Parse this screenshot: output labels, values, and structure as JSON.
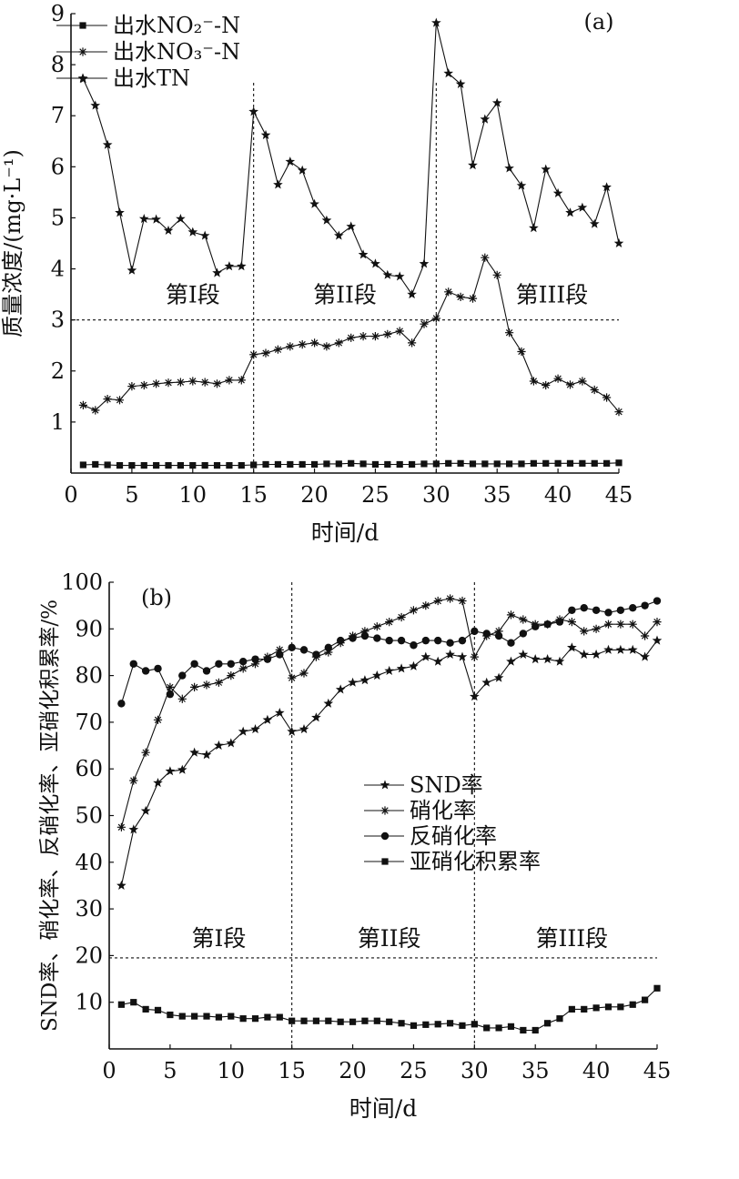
{
  "chart_data": [
    {
      "type": "line",
      "panel_label": "(a)",
      "xlabel": "时间/d",
      "ylabel": "质量浓度/(mg·L⁻¹)",
      "xlim": [
        0,
        45
      ],
      "ylim": [
        0,
        9
      ],
      "xticks": [
        "0",
        "5",
        "10",
        "15",
        "20",
        "25",
        "30",
        "35",
        "40",
        "45"
      ],
      "yticks": [
        "1",
        "2",
        "3",
        "4",
        "5",
        "6",
        "7",
        "8",
        "9"
      ],
      "legend_position": "top-left",
      "phases": [
        {
          "label": "第I段",
          "x": 10,
          "y": 3.2
        },
        {
          "label": "第II段",
          "x": 22.5,
          "y": 3.2
        },
        {
          "label": "第III段",
          "x": 39.5,
          "y": 3.2
        }
      ],
      "phase_threshold_y": 3,
      "phase_boundaries_x": [
        15,
        30
      ],
      "series": [
        {
          "name": "出水NO₂⁻-N",
          "marker": "square",
          "x": [
            1,
            2,
            3,
            4,
            5,
            6,
            7,
            8,
            9,
            10,
            11,
            12,
            13,
            14,
            15,
            16,
            17,
            18,
            19,
            20,
            21,
            22,
            23,
            24,
            25,
            26,
            27,
            28,
            29,
            30,
            31,
            32,
            33,
            34,
            35,
            36,
            37,
            38,
            39,
            40,
            41,
            42,
            43,
            44,
            45
          ],
          "y": [
            0.16,
            0.17,
            0.16,
            0.15,
            0.15,
            0.15,
            0.15,
            0.15,
            0.15,
            0.15,
            0.15,
            0.15,
            0.15,
            0.15,
            0.16,
            0.17,
            0.17,
            0.17,
            0.17,
            0.17,
            0.18,
            0.18,
            0.19,
            0.18,
            0.17,
            0.17,
            0.17,
            0.17,
            0.18,
            0.18,
            0.19,
            0.19,
            0.18,
            0.18,
            0.18,
            0.18,
            0.18,
            0.19,
            0.19,
            0.19,
            0.19,
            0.19,
            0.19,
            0.19,
            0.2
          ]
        },
        {
          "name": "出水NO₃⁻-N",
          "marker": "asterisk",
          "x": [
            1,
            2,
            3,
            4,
            5,
            6,
            7,
            8,
            9,
            10,
            11,
            12,
            13,
            14,
            15,
            16,
            17,
            18,
            19,
            20,
            21,
            22,
            23,
            24,
            25,
            26,
            27,
            28,
            29,
            30,
            31,
            32,
            33,
            34,
            35,
            36,
            37,
            38,
            39,
            40,
            41,
            42,
            43,
            44,
            45
          ],
          "y": [
            1.33,
            1.23,
            1.45,
            1.43,
            1.7,
            1.72,
            1.75,
            1.77,
            1.78,
            1.8,
            1.78,
            1.75,
            1.82,
            1.82,
            2.32,
            2.35,
            2.42,
            2.48,
            2.52,
            2.55,
            2.48,
            2.55,
            2.65,
            2.68,
            2.68,
            2.72,
            2.78,
            2.55,
            2.92,
            3.03,
            3.55,
            3.45,
            3.42,
            4.22,
            3.88,
            2.75,
            2.38,
            1.8,
            1.72,
            1.85,
            1.73,
            1.8,
            1.63,
            1.48,
            1.2
          ]
        },
        {
          "name": "出水TN",
          "marker": "star",
          "x": [
            1,
            2,
            3,
            4,
            5,
            6,
            7,
            8,
            9,
            10,
            11,
            12,
            13,
            14,
            15,
            16,
            17,
            18,
            19,
            20,
            21,
            22,
            23,
            24,
            25,
            26,
            27,
            28,
            29,
            30,
            31,
            32,
            33,
            34,
            35,
            36,
            37,
            38,
            39,
            40,
            41,
            42,
            43,
            44,
            45
          ],
          "y": [
            7.72,
            7.2,
            6.43,
            5.1,
            3.97,
            4.98,
            4.97,
            4.75,
            4.98,
            4.72,
            4.65,
            3.92,
            4.05,
            4.05,
            7.08,
            6.62,
            5.65,
            6.1,
            5.93,
            5.27,
            4.95,
            4.65,
            4.83,
            4.28,
            4.1,
            3.88,
            3.85,
            3.5,
            4.1,
            8.82,
            7.83,
            7.62,
            6.03,
            6.93,
            7.25,
            5.97,
            5.63,
            4.8,
            5.95,
            5.48,
            5.1,
            5.2,
            4.88,
            5.6,
            4.5
          ]
        }
      ]
    },
    {
      "type": "line",
      "panel_label": "(b)",
      "xlabel": "时间/d",
      "ylabel": "SND率、硝化率、反硝化率、亚硝化积累率/%",
      "xlim": [
        0,
        45
      ],
      "ylim": [
        0,
        100
      ],
      "xticks": [
        "0",
        "5",
        "10",
        "15",
        "20",
        "25",
        "30",
        "35",
        "40",
        "45"
      ],
      "yticks": [
        "10",
        "20",
        "30",
        "40",
        "50",
        "60",
        "70",
        "80",
        "90",
        "100"
      ],
      "legend_position": "center-right",
      "phases": [
        {
          "label": "第I段",
          "x": 9,
          "y": 22
        },
        {
          "label": "第II段",
          "x": 23,
          "y": 22
        },
        {
          "label": "第III段",
          "x": 38,
          "y": 22
        }
      ],
      "phase_threshold_y": 19.5,
      "phase_boundaries_x": [
        15,
        30
      ],
      "series": [
        {
          "name": "SND率",
          "marker": "star",
          "x": [
            1,
            2,
            3,
            4,
            5,
            6,
            7,
            8,
            9,
            10,
            11,
            12,
            13,
            14,
            15,
            16,
            17,
            18,
            19,
            20,
            21,
            22,
            23,
            24,
            25,
            26,
            27,
            28,
            29,
            30,
            31,
            32,
            33,
            34,
            35,
            36,
            37,
            38,
            39,
            40,
            41,
            42,
            43,
            44,
            45
          ],
          "y": [
            35,
            47,
            51,
            57,
            59.5,
            59.8,
            63.5,
            63,
            65,
            65.5,
            68,
            68.5,
            70.5,
            72,
            68,
            68.5,
            71,
            74,
            77,
            78.5,
            79,
            80,
            81,
            81.5,
            82,
            84,
            83,
            84.5,
            84,
            75.5,
            78.5,
            79.5,
            83,
            84.5,
            83.5,
            83.5,
            83,
            86,
            84.5,
            84.5,
            85.5,
            85.5,
            85.5,
            84,
            87.5
          ]
        },
        {
          "name": "硝化率",
          "marker": "asterisk",
          "x": [
            1,
            2,
            3,
            4,
            5,
            6,
            7,
            8,
            9,
            10,
            11,
            12,
            13,
            14,
            15,
            16,
            17,
            18,
            19,
            20,
            21,
            22,
            23,
            24,
            25,
            26,
            27,
            28,
            29,
            30,
            31,
            32,
            33,
            34,
            35,
            36,
            37,
            38,
            39,
            40,
            41,
            42,
            43,
            44,
            45
          ],
          "y": [
            47.5,
            57.5,
            63.5,
            70.5,
            77.5,
            75,
            77.5,
            78,
            78.5,
            80,
            81.5,
            82.5,
            84,
            85.5,
            79.5,
            80.5,
            84,
            85,
            87,
            88.5,
            89.5,
            90.5,
            91.5,
            92.5,
            94,
            95,
            96,
            96.5,
            96,
            84,
            88.5,
            89.5,
            93,
            92,
            91,
            91,
            92,
            91.5,
            89.5,
            90,
            91,
            91,
            91,
            88.5,
            91.5
          ]
        },
        {
          "name": "反硝化率",
          "marker": "circle",
          "x": [
            1,
            2,
            3,
            4,
            5,
            6,
            7,
            8,
            9,
            10,
            11,
            12,
            13,
            14,
            15,
            16,
            17,
            18,
            19,
            20,
            21,
            22,
            23,
            24,
            25,
            26,
            27,
            28,
            29,
            30,
            31,
            32,
            33,
            34,
            35,
            36,
            37,
            38,
            39,
            40,
            41,
            42,
            43,
            44,
            45
          ],
          "y": [
            74,
            82.5,
            81,
            81.5,
            76,
            80,
            82.5,
            81,
            82.5,
            82.5,
            83,
            83.5,
            83.5,
            84.5,
            86,
            85.5,
            84.5,
            86,
            87.5,
            88,
            88.5,
            88,
            87.5,
            87.5,
            86.5,
            87.5,
            87.5,
            87,
            87.5,
            89.5,
            89,
            88.5,
            87,
            89,
            90.5,
            91,
            91.5,
            94,
            94.5,
            94,
            93.5,
            94,
            94.5,
            95,
            96
          ]
        },
        {
          "name": "亚硝化积累率",
          "marker": "square",
          "x": [
            1,
            2,
            3,
            4,
            5,
            6,
            7,
            8,
            9,
            10,
            11,
            12,
            13,
            14,
            15,
            16,
            17,
            18,
            19,
            20,
            21,
            22,
            23,
            24,
            25,
            26,
            27,
            28,
            29,
            30,
            31,
            32,
            33,
            34,
            35,
            36,
            37,
            38,
            39,
            40,
            41,
            42,
            43,
            44,
            45
          ],
          "y": [
            9.5,
            10,
            8.5,
            8.3,
            7.3,
            7,
            7,
            7,
            6.8,
            7,
            6.5,
            6.5,
            6.8,
            6.8,
            6,
            6,
            6,
            6,
            5.8,
            5.8,
            6,
            6,
            5.8,
            5.5,
            5,
            5.2,
            5.3,
            5.5,
            5,
            5.3,
            4.5,
            4.5,
            4.8,
            4,
            4,
            5.5,
            6.5,
            8.5,
            8.5,
            8.8,
            9,
            9,
            9.5,
            10.5,
            13
          ]
        }
      ]
    }
  ]
}
